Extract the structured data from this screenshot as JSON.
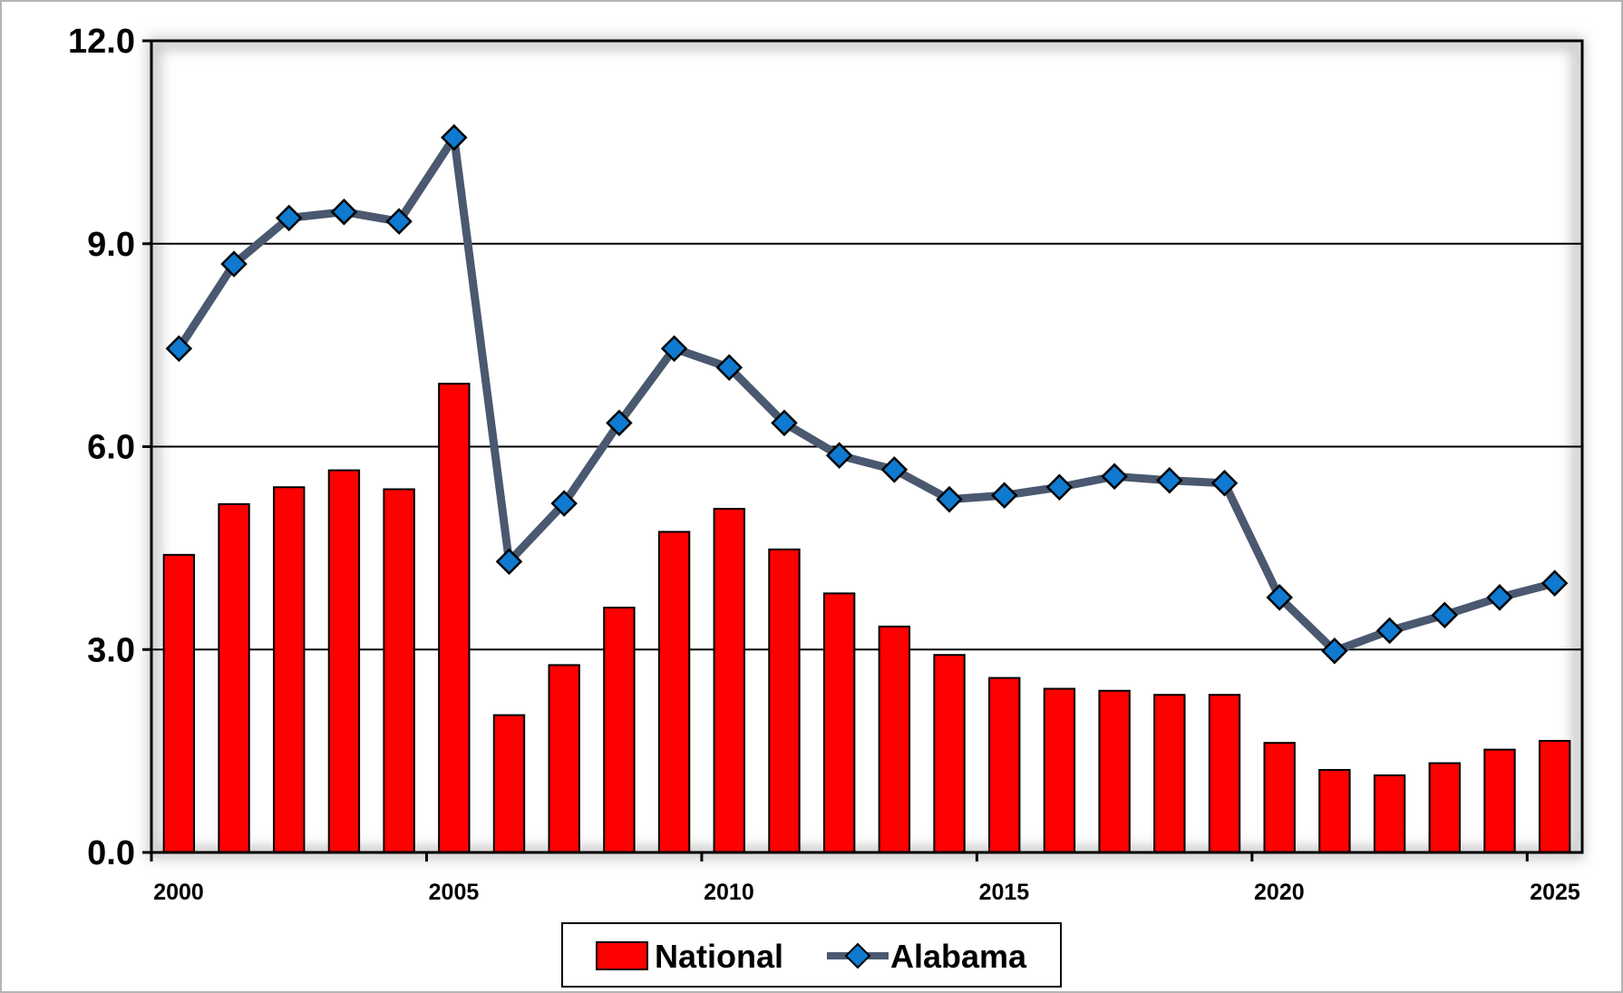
{
  "chart_data": {
    "type": "bar",
    "x": [
      2000,
      2001,
      2002,
      2003,
      2004,
      2005,
      2006,
      2007,
      2008,
      2009,
      2010,
      2011,
      2012,
      2013,
      2014,
      2015,
      2016,
      2017,
      2018,
      2019,
      2020,
      2021,
      2022,
      2023,
      2024,
      2025
    ],
    "x_tick_labels": [
      "2000",
      "2005",
      "2010",
      "2015",
      "2020",
      "2025"
    ],
    "x_tick_values": [
      2000,
      2005,
      2010,
      2015,
      2020,
      2025
    ],
    "y_tick_labels": [
      "0.0",
      "3.0",
      "6.0",
      "9.0",
      "12.0"
    ],
    "y_tick_values": [
      0,
      3,
      6,
      9,
      12
    ],
    "ylim": [
      0,
      12
    ],
    "xlabel": "",
    "ylabel": "",
    "title": "",
    "grid": "horizontal major gridlines",
    "legend_position": "bottom-center",
    "series": [
      {
        "name": "National",
        "kind": "bar",
        "color": "#ff0000",
        "values": [
          4.4,
          5.15,
          5.4,
          5.65,
          5.37,
          6.93,
          2.03,
          2.77,
          3.62,
          4.74,
          5.08,
          4.48,
          3.83,
          3.34,
          2.92,
          2.58,
          2.42,
          2.39,
          2.33,
          2.33,
          1.62,
          1.22,
          1.14,
          1.32,
          1.52,
          1.65
        ]
      },
      {
        "name": "Alabama",
        "kind": "line",
        "color": "#4a5870",
        "marker": "diamond",
        "marker_color": "#0f7ad0",
        "values": [
          7.45,
          8.7,
          9.38,
          9.47,
          9.33,
          10.57,
          4.3,
          5.16,
          6.35,
          7.45,
          7.17,
          6.35,
          5.87,
          5.66,
          5.22,
          5.28,
          5.4,
          5.56,
          5.5,
          5.46,
          3.77,
          2.98,
          3.28,
          3.51,
          3.77,
          3.98
        ]
      }
    ]
  }
}
